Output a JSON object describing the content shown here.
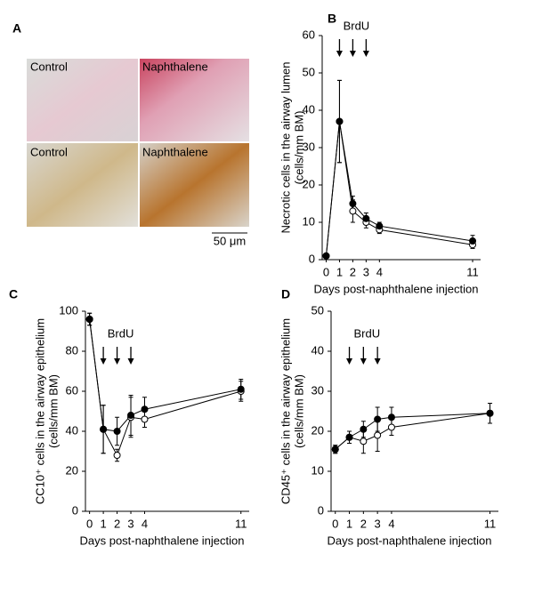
{
  "panel_a": {
    "panel": "A",
    "labels": [
      "Control",
      "Naphthalene",
      "Control",
      "Naphthalene"
    ],
    "scale_bar": "50 μm"
  },
  "chart_data": [
    {
      "type": "line",
      "panel": "B",
      "annotation": "BrdU",
      "ylabel": [
        "Necrotic cells in the airway lumen",
        "(cells/mm BM)"
      ],
      "xlabel": "Days post-naphthalene injection",
      "x": [
        0,
        1,
        2,
        3,
        4,
        11
      ],
      "xlim": [
        -0.3,
        11.6
      ],
      "xticks": [
        0,
        1,
        2,
        3,
        4,
        11
      ],
      "ylim": [
        0,
        60
      ],
      "yticks": [
        0,
        10,
        20,
        30,
        40,
        50,
        60
      ],
      "series": [
        {
          "marker": "open",
          "color": "#000000",
          "values": [
            1,
            37,
            13,
            10,
            8,
            4
          ],
          "errors": [
            0.5,
            11,
            3,
            1.5,
            1,
            1
          ]
        },
        {
          "marker": "filled",
          "color": "#000000",
          "values": [
            1,
            37,
            15,
            11,
            9,
            5
          ],
          "errors": [
            0.5,
            11,
            2,
            1.5,
            1,
            1.5
          ]
        }
      ]
    },
    {
      "type": "line",
      "panel": "C",
      "annotation": "BrdU",
      "ylabel": [
        "CC10⁺ cells in the airway epithelium",
        "(cells/mm BM)"
      ],
      "xlabel": "Days post-naphthalene injection",
      "x": [
        0,
        1,
        2,
        3,
        4,
        11
      ],
      "xlim": [
        -0.3,
        11.6
      ],
      "xticks": [
        0,
        1,
        2,
        3,
        4,
        11
      ],
      "ylim": [
        0,
        100
      ],
      "yticks": [
        0,
        20,
        40,
        60,
        80,
        100
      ],
      "series": [
        {
          "marker": "open",
          "color": "#000000",
          "values": [
            96,
            41,
            28,
            47,
            46,
            60
          ],
          "errors": [
            3,
            12,
            3,
            10,
            4,
            5
          ]
        },
        {
          "marker": "filled",
          "color": "#000000",
          "values": [
            96,
            41,
            40,
            48,
            51,
            61
          ],
          "errors": [
            3,
            12,
            7,
            10,
            6,
            5
          ]
        }
      ]
    },
    {
      "type": "line",
      "panel": "D",
      "annotation": "BrdU",
      "ylabel": [
        "CD45⁺ cells in the airway epithelium",
        "(cells/mm BM)"
      ],
      "xlabel": "Days post-naphthalene injection",
      "x": [
        0,
        1,
        2,
        3,
        4,
        11
      ],
      "xlim": [
        -0.3,
        11.6
      ],
      "xticks": [
        0,
        1,
        2,
        3,
        4,
        11
      ],
      "ylim": [
        0,
        50
      ],
      "yticks": [
        0,
        10,
        20,
        30,
        40,
        50
      ],
      "series": [
        {
          "marker": "open",
          "color": "#000000",
          "values": [
            15.5,
            18.5,
            17.5,
            19,
            21,
            24.5
          ],
          "errors": [
            1,
            1.5,
            3,
            4,
            2,
            2.5
          ]
        },
        {
          "marker": "filled",
          "color": "#000000",
          "values": [
            15.5,
            18.5,
            20.5,
            23,
            23.5,
            24.5
          ],
          "errors": [
            1,
            1.5,
            2,
            3,
            2.5,
            2.5
          ]
        }
      ]
    }
  ]
}
